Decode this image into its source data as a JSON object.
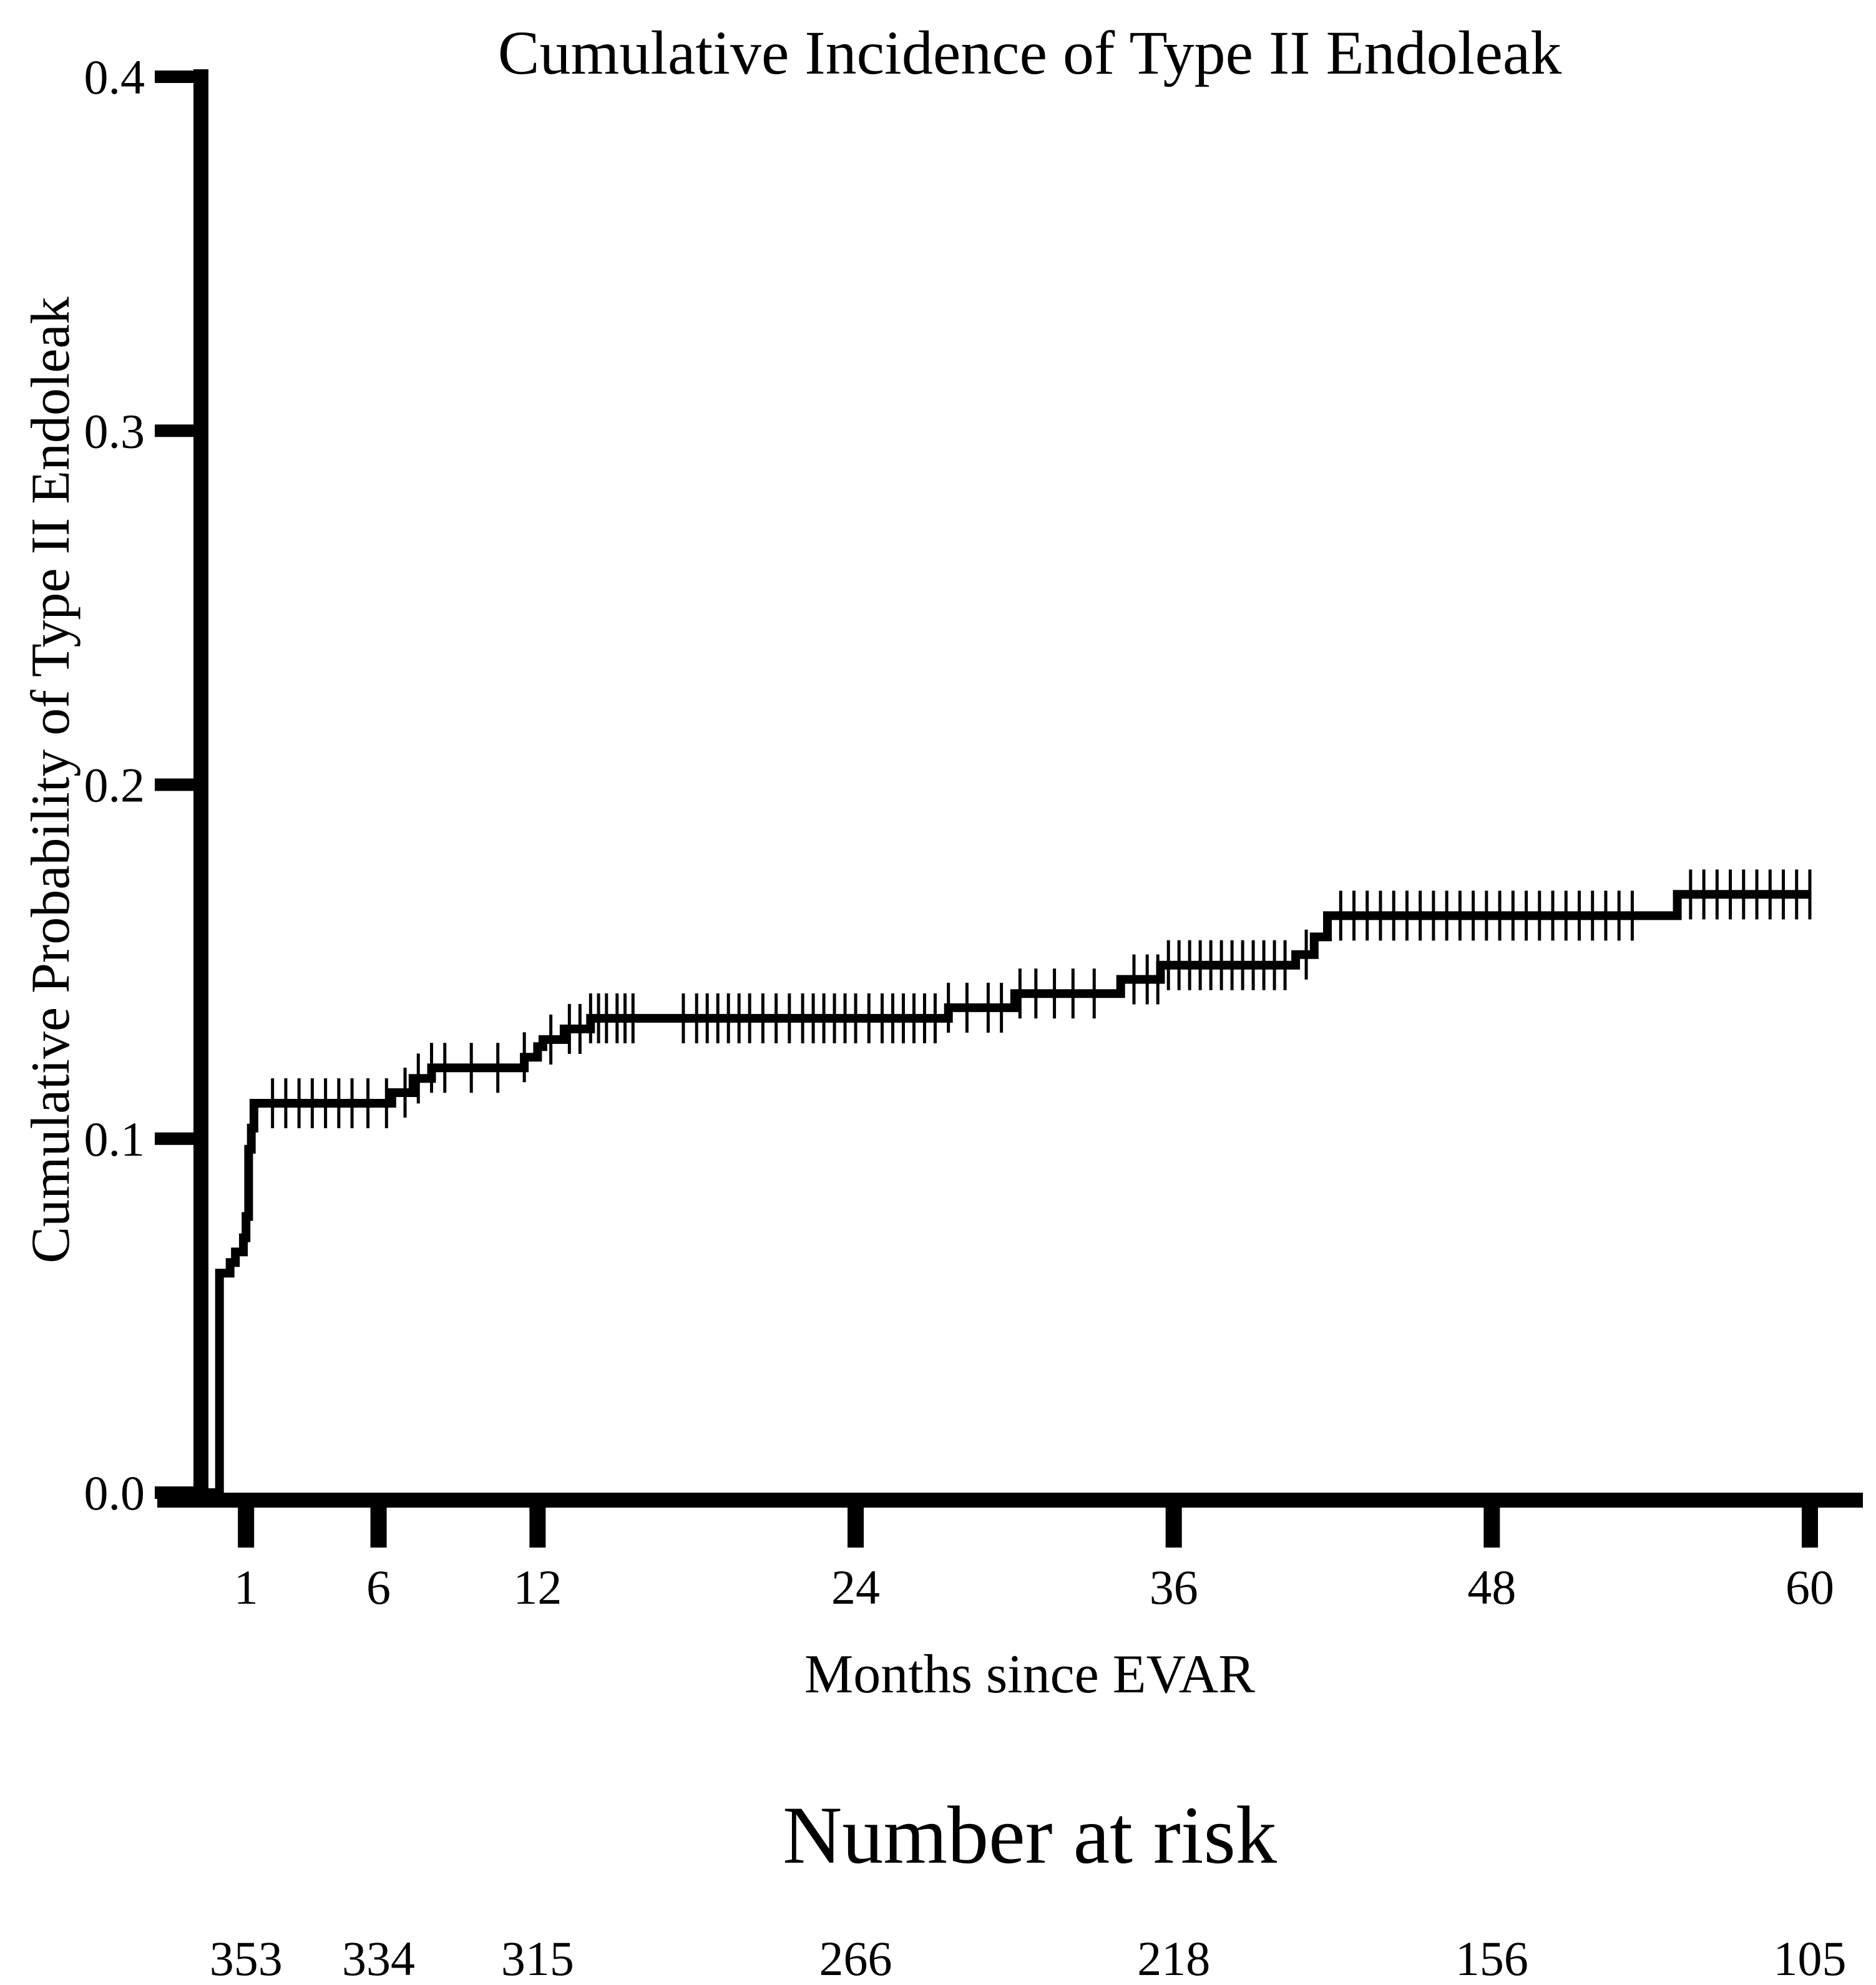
{
  "chart_data": {
    "type": "line",
    "subtype": "step",
    "title": "Cumulative Incidence of Type II Endoleak",
    "xlabel": "Months since EVAR",
    "ylabel": "Cumulative Probability of Type II Endoleak",
    "xlim": [
      -0.7,
      60
    ],
    "ylim": [
      0,
      0.4
    ],
    "xticks": [
      1,
      6,
      12,
      24,
      36,
      48,
      60
    ],
    "xtick_labels": [
      "1",
      "6",
      "12",
      "24",
      "36",
      "48",
      "60"
    ],
    "yticks": [
      0.0,
      0.1,
      0.2,
      0.3,
      0.4
    ],
    "ytick_labels": [
      "0.0",
      "0.1",
      "0.2",
      "0.3",
      "0.4"
    ],
    "grid": false,
    "series": [
      {
        "name": "Type II Endoleak",
        "x": [
          -0.7,
          0.0,
          0.4,
          0.6,
          0.9,
          1.0,
          1.1,
          1.2,
          1.3,
          6.0,
          6.5,
          7.3,
          8.0,
          9.0,
          10.0,
          10.8,
          11.5,
          12.0,
          12.2,
          13.0,
          14.0,
          15.5,
          25.0,
          27.5,
          28.5,
          30.0,
          32.0,
          34.0,
          35.5,
          40.0,
          40.6,
          41.3,
          41.8,
          42.5,
          50.0,
          54.0,
          55.0,
          60.0
        ],
        "y": [
          0.0,
          0.062,
          0.065,
          0.068,
          0.072,
          0.078,
          0.097,
          0.103,
          0.11,
          0.11,
          0.113,
          0.117,
          0.12,
          0.12,
          0.12,
          0.12,
          0.123,
          0.126,
          0.128,
          0.131,
          0.134,
          0.134,
          0.134,
          0.137,
          0.137,
          0.141,
          0.141,
          0.145,
          0.149,
          0.149,
          0.152,
          0.157,
          0.163,
          0.163,
          0.163,
          0.163,
          0.169,
          0.169
        ]
      }
    ],
    "censor_marks_x": [
      2.0,
      2.5,
      3.0,
      3.5,
      4.0,
      4.5,
      5.0,
      5.6,
      6.3,
      7.0,
      7.5,
      8.0,
      8.5,
      9.5,
      10.5,
      11.5,
      12.5,
      13.2,
      13.6,
      14.0,
      14.3,
      14.6,
      15.0,
      15.3,
      15.6,
      17.5,
      18.0,
      18.4,
      18.8,
      19.2,
      19.6,
      20.0,
      20.5,
      21.0,
      21.5,
      22.0,
      22.4,
      22.8,
      23.2,
      23.6,
      24.0,
      24.5,
      25.0,
      25.4,
      25.8,
      26.2,
      26.6,
      27.0,
      27.5,
      28.2,
      29.0,
      29.5,
      30.2,
      30.8,
      31.5,
      32.2,
      33.0,
      34.5,
      35.0,
      35.4,
      35.8,
      36.2,
      36.6,
      37.0,
      37.4,
      37.8,
      38.2,
      38.6,
      39.0,
      39.4,
      39.8,
      40.2,
      41.0,
      42.3,
      42.8,
      43.3,
      43.8,
      44.3,
      44.8,
      45.3,
      45.8,
      46.3,
      46.8,
      47.3,
      47.8,
      48.3,
      48.8,
      49.3,
      49.8,
      50.3,
      50.8,
      51.3,
      51.8,
      52.3,
      52.8,
      53.3,
      55.5,
      56.0,
      56.5,
      57.0,
      57.5,
      58.0,
      58.5,
      59.0,
      59.5,
      60.0
    ],
    "risk_table": {
      "title": "Number at risk",
      "x": [
        1,
        6,
        12,
        24,
        36,
        48,
        60
      ],
      "values": [
        "353",
        "334",
        "315",
        "266",
        "218",
        "156",
        "105"
      ]
    }
  }
}
